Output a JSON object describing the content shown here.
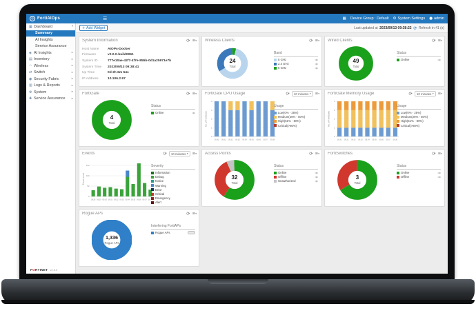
{
  "theme": {
    "navbar_blue": "#2478be",
    "green": "#1ba01b",
    "red": "#d0382e",
    "blue": "#2f80c9",
    "light_blue": "#b9d5ed",
    "mid_blue": "#3b79bb",
    "bar_blue": "#6b9bd1",
    "yellow": "#f1c15d",
    "orange": "#ec9b3b",
    "critical_red": "#b93a32",
    "gray": "#c4c4c4"
  },
  "topbar": {
    "brand": "FortiAIOps",
    "device_group": "Device Group : Default",
    "system_settings": "System Settings",
    "user": "admin"
  },
  "sidebar": {
    "items": [
      {
        "label": "Dashboard",
        "icon_glyph": "▦",
        "icon_name": "dashboard-icon",
        "arrow": "down"
      },
      {
        "label": "Summary",
        "child": true,
        "active": true
      },
      {
        "label": "AI Insights",
        "child": true
      },
      {
        "label": "Service Assurance",
        "child": true
      },
      {
        "label": "AI Insights",
        "icon_glyph": "◈",
        "icon_name": "ai-insights-icon",
        "arrow": "right"
      },
      {
        "label": "Inventory",
        "icon_glyph": "▤",
        "icon_name": "inventory-icon",
        "arrow": "right"
      },
      {
        "label": "Wireless",
        "icon_glyph": "◠",
        "icon_name": "wireless-icon",
        "arrow": "right"
      },
      {
        "label": "Switch",
        "icon_glyph": "⇄",
        "icon_name": "switch-icon",
        "arrow": "right"
      },
      {
        "label": "Security Fabric",
        "icon_glyph": "◉",
        "icon_name": "security-fabric-icon",
        "arrow": "right"
      },
      {
        "label": "Logs & Reports",
        "icon_glyph": "▥",
        "icon_name": "logs-reports-icon",
        "arrow": "right"
      },
      {
        "label": "System",
        "icon_glyph": "⚙",
        "icon_name": "system-icon",
        "arrow": "right"
      },
      {
        "label": "Service Assurance",
        "icon_glyph": "✚",
        "icon_name": "service-assurance-icon",
        "arrow": "right"
      }
    ],
    "footer": {
      "logo_left": "F",
      "logo_o": "O",
      "logo_right": "RTINET",
      "version": "v2.0.0"
    }
  },
  "toolbar": {
    "add_widget": "Add Widget",
    "last_updated_prefix": "Last updated at",
    "last_updated_time": "2023/09/13 09:38:22",
    "refresh_countdown": "Refresh in 41 (s)"
  },
  "widgets": {
    "system_information": {
      "title": "System Information",
      "fields": [
        {
          "label": "Host Name",
          "value": "AIOPs-Docker"
        },
        {
          "label": "Firmware",
          "value": "v2.0.0-build0061"
        },
        {
          "label": "System ID",
          "value": "777e10ae-42f7-4f7e-855b-0d1a25971e7b"
        },
        {
          "label": "System Time",
          "value": "2023/09/13 09:38:41"
        },
        {
          "label": "Up Time",
          "value": "0d 2h 6m 54s"
        },
        {
          "label": "IP Address",
          "value": "10.106.2.97"
        }
      ]
    },
    "wireless_clients": {
      "title": "Wireless Clients",
      "center": {
        "value": "24",
        "caption": "Total"
      },
      "chart": {
        "type": "donut",
        "thickness": 9,
        "slices": [
          {
            "label": "6 GHz",
            "value": 1,
            "color": "#1ba01b"
          },
          {
            "label": "5 GHz",
            "value": 15,
            "color": "#b9d5ed"
          },
          {
            "label": "2.4 GHz",
            "value": 8,
            "color": "#3b79bb"
          }
        ]
      },
      "legend": {
        "title": "Band",
        "items": [
          {
            "label": "5 GHz",
            "color": "#b9d5ed",
            "eye": true
          },
          {
            "label": "2.4 GHz",
            "color": "#3b79bb",
            "eye": true
          },
          {
            "label": "6 GHz",
            "color": "#1ba01b",
            "eye": true
          }
        ]
      }
    },
    "wired_clients": {
      "title": "Wired Clients",
      "center": {
        "value": "49",
        "caption": "Total"
      },
      "chart": {
        "type": "donut",
        "thickness": 12,
        "slices": [
          {
            "label": "Online",
            "value": 49,
            "color": "#1ba01b"
          }
        ]
      },
      "legend": {
        "title": "Status",
        "items": [
          {
            "label": "Online",
            "color": "#1ba01b",
            "eye": true
          }
        ]
      }
    },
    "fortigate": {
      "title": "FortiGate",
      "center": {
        "value": "4",
        "caption": "Total"
      },
      "chart": {
        "type": "donut",
        "thickness": 12,
        "slices": [
          {
            "label": "Online",
            "value": 4,
            "color": "#1ba01b"
          }
        ]
      },
      "legend": {
        "title": "Status",
        "items": [
          {
            "label": "Online",
            "color": "#1ba01b",
            "eye": true
          }
        ]
      }
    },
    "fortigate_cpu": {
      "title": "FortiGate CPU Usage",
      "interval": "10 minutes",
      "chart": {
        "type": "stacked-bar",
        "categories": [
          "09:30",
          "09:31",
          "09:32",
          "09:33",
          "09:34",
          "09:35",
          "09:36",
          "09:37",
          "09:38"
        ],
        "ylabel": "No. of FortiGates",
        "ylim": [
          0,
          4
        ],
        "yticks": [
          0,
          1,
          2,
          3,
          4
        ],
        "series": [
          {
            "name": "Low(0% - 25%)",
            "color": "#6b9bd1",
            "values": [
              4,
              4,
              3,
              3,
              4,
              3,
              4,
              4,
              3
            ]
          },
          {
            "name": "Medium(26% - 50%)",
            "color": "#f1c15d",
            "values": [
              0,
              0,
              1,
              1,
              0,
              1,
              0,
              0,
              1
            ]
          }
        ]
      },
      "legend": {
        "title": "Usage",
        "items": [
          {
            "label": "Low(0% - 25%)",
            "color": "#6b9bd1"
          },
          {
            "label": "Medium(26% - 50%)",
            "color": "#f1c15d"
          },
          {
            "label": "High(51% - 80%)",
            "color": "#ec9b3b"
          },
          {
            "label": "Critical(>80%)",
            "color": "#b93a32"
          }
        ]
      }
    },
    "fortigate_memory": {
      "title": "FortiGate Memory Usage",
      "interval": "10 minutes",
      "chart": {
        "type": "stacked-bar",
        "categories": [
          "09:30",
          "09:31",
          "09:32",
          "09:33",
          "09:34",
          "09:35",
          "09:36",
          "09:37",
          "09:38"
        ],
        "ylabel": "No. of FortiGates",
        "ylim": [
          0,
          4
        ],
        "yticks": [
          0,
          1,
          2,
          3,
          4
        ],
        "series": [
          {
            "name": "Low(0% - 25%)",
            "color": "#6b9bd1",
            "values": [
              1,
              1,
              1,
              1,
              1,
              1,
              1,
              1,
              1
            ]
          },
          {
            "name": "Medium(26% - 50%)",
            "color": "#f1c15d",
            "values": [
              2,
              2,
              2,
              2,
              2,
              2,
              2,
              2,
              2
            ]
          },
          {
            "name": "High(51% - 80%)",
            "color": "#ec9b3b",
            "values": [
              1,
              1,
              1,
              1,
              1,
              1,
              1,
              1,
              1
            ]
          }
        ]
      },
      "legend": {
        "title": "Usage",
        "items": [
          {
            "label": "Low(0% - 25%)",
            "color": "#6b9bd1"
          },
          {
            "label": "Medium(26% - 50%)",
            "color": "#f1c15d"
          },
          {
            "label": "High(51% - 80%)",
            "color": "#ec9b3b"
          },
          {
            "label": "Critical(>80%)",
            "color": "#b93a32"
          }
        ]
      }
    },
    "events": {
      "title": "Events",
      "interval": "10 minutes",
      "chart": {
        "type": "stacked-bar",
        "categories": [
          "09:28",
          "09:29",
          "09:30",
          "09:31",
          "09:32",
          "09:33",
          "09:34",
          "09:35",
          "09:36",
          "09:37",
          "09:38"
        ],
        "ylabel": "Events count",
        "ylim": [
          0,
          170
        ],
        "yticks": [
          0,
          50,
          100,
          150
        ],
        "series": [
          {
            "name": "Information",
            "color": "#3aa33a",
            "values": [
              30,
              48,
              42,
              45,
              38,
              35,
              95,
              60,
              160,
              65,
              33
            ]
          },
          {
            "name": "Warning",
            "color": "#4a86c8",
            "values": [
              0,
              0,
              0,
              0,
              0,
              0,
              30,
              0,
              0,
              0,
              0
            ]
          }
        ]
      },
      "legend": {
        "title": "Severity",
        "items": [
          {
            "label": "Information",
            "color": "#1e6e1e"
          },
          {
            "label": "Debug",
            "color": "#3aa33a"
          },
          {
            "label": "Notice",
            "color": "#2a9d8f"
          },
          {
            "label": "Warning",
            "color": "#4a86c8"
          },
          {
            "label": "Error",
            "color": "#16325c"
          },
          {
            "label": "Critical",
            "color": "#c9362e"
          },
          {
            "label": "Emergency",
            "color": "#8f211b"
          },
          {
            "label": "Alert",
            "color": "#5f130e"
          }
        ]
      }
    },
    "access_points": {
      "title": "Access Points",
      "center": {
        "value": "32",
        "caption": "Total"
      },
      "chart": {
        "type": "donut",
        "thickness": 12,
        "slices": [
          {
            "label": "Online",
            "value": 19,
            "color": "#1ba01b"
          },
          {
            "label": "Offline",
            "value": 11,
            "color": "#d0382e"
          },
          {
            "label": "Unauthorized",
            "value": 2,
            "color": "#c4c4c4"
          }
        ]
      },
      "legend": {
        "title": "Status",
        "items": [
          {
            "label": "Online",
            "color": "#1ba01b",
            "eye": true
          },
          {
            "label": "Offline",
            "color": "#d0382e",
            "eye": true
          },
          {
            "label": "Unauthorized",
            "color": "#c4c4c4",
            "eye": true
          }
        ]
      }
    },
    "fortiswitches": {
      "title": "FortiSwitches",
      "center": {
        "value": "3",
        "caption": "Total"
      },
      "chart": {
        "type": "donut",
        "thickness": 12,
        "slices": [
          {
            "label": "Online",
            "value": 2,
            "color": "#1ba01b"
          },
          {
            "label": "Offline",
            "value": 1,
            "color": "#d0382e"
          }
        ]
      },
      "legend": {
        "title": "Status",
        "items": [
          {
            "label": "Online",
            "color": "#1ba01b",
            "eye": true
          },
          {
            "label": "Offline",
            "color": "#d0382e",
            "eye": true
          }
        ]
      }
    },
    "rogue_aps": {
      "title": "Rogue APs",
      "center": {
        "value": "1,336",
        "caption": "Rogue APs"
      },
      "chart": {
        "type": "donut",
        "thickness": 13,
        "slices": [
          {
            "label": "Rogue APs",
            "value": 1336,
            "color": "#2f80c9"
          }
        ]
      },
      "legend": {
        "title": "Interfering FortiAPs",
        "items": [
          {
            "label": "Rogue APs",
            "color": "#2f80c9",
            "badge": true
          }
        ]
      }
    }
  }
}
